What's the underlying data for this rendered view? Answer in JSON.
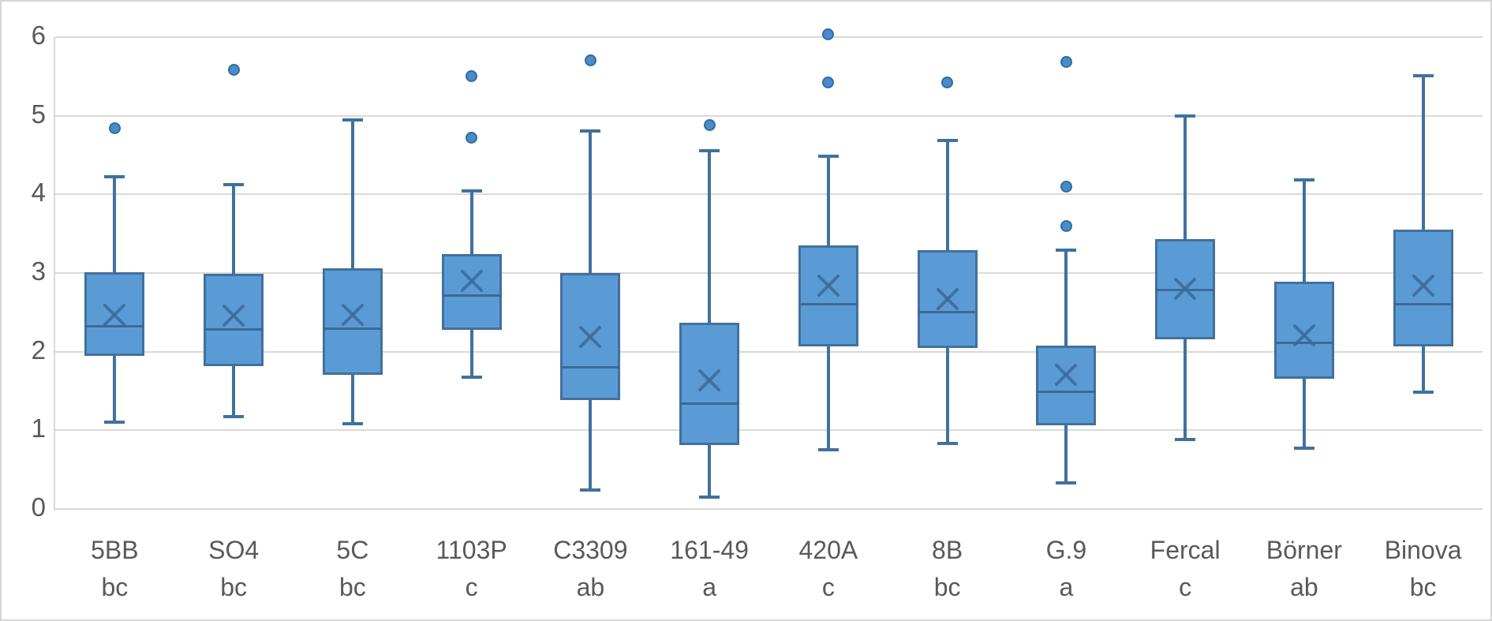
{
  "chart_data": {
    "type": "boxplot",
    "title": "",
    "xlabel": "",
    "ylabel": "",
    "ylim": [
      0,
      6
    ],
    "y_ticks": [
      "0",
      "1",
      "2",
      "3",
      "4",
      "5",
      "6"
    ],
    "grid": true,
    "legend": false,
    "categories": [
      "5BB",
      "SO4",
      "5C",
      "1103P",
      "C3309",
      "161-49",
      "420A",
      "8B",
      "G.9",
      "Fercal",
      "Börner",
      "Binova"
    ],
    "significance_groups": [
      "bc",
      "bc",
      "bc",
      "c",
      "ab",
      "a",
      "c",
      "bc",
      "a",
      "c",
      "ab",
      "bc"
    ],
    "series": [
      {
        "name": "5BB",
        "group": "bc",
        "whisker_low": 1.1,
        "q1": 1.95,
        "median": 2.32,
        "mean": 2.47,
        "q3": 3.01,
        "whisker_high": 4.22,
        "outliers": [
          4.84
        ]
      },
      {
        "name": "SO4",
        "group": "bc",
        "whisker_low": 1.17,
        "q1": 1.82,
        "median": 2.28,
        "mean": 2.46,
        "q3": 2.99,
        "whisker_high": 4.12,
        "outliers": [
          5.58
        ]
      },
      {
        "name": "5C",
        "group": "bc",
        "whisker_low": 1.08,
        "q1": 1.71,
        "median": 2.29,
        "mean": 2.47,
        "q3": 3.06,
        "whisker_high": 4.94,
        "outliers": []
      },
      {
        "name": "1103P",
        "group": "c",
        "whisker_low": 1.68,
        "q1": 2.28,
        "median": 2.71,
        "mean": 2.9,
        "q3": 3.24,
        "whisker_high": 4.04,
        "outliers": [
          5.5,
          4.72
        ]
      },
      {
        "name": "C3309",
        "group": "ab",
        "whisker_low": 0.24,
        "q1": 1.38,
        "median": 1.8,
        "mean": 2.19,
        "q3": 3.0,
        "whisker_high": 4.8,
        "outliers": [
          5.7
        ]
      },
      {
        "name": "161-49",
        "group": "a",
        "whisker_low": 0.15,
        "q1": 0.81,
        "median": 1.34,
        "mean": 1.63,
        "q3": 2.37,
        "whisker_high": 4.55,
        "outliers": [
          4.88
        ]
      },
      {
        "name": "420A",
        "group": "c",
        "whisker_low": 0.75,
        "q1": 2.07,
        "median": 2.6,
        "mean": 2.84,
        "q3": 3.35,
        "whisker_high": 4.48,
        "outliers": [
          6.03,
          5.42
        ]
      },
      {
        "name": "8B",
        "group": "bc",
        "whisker_low": 0.83,
        "q1": 2.05,
        "median": 2.5,
        "mean": 2.67,
        "q3": 3.29,
        "whisker_high": 4.68,
        "outliers": [
          5.42
        ]
      },
      {
        "name": "G.9",
        "group": "a",
        "whisker_low": 0.33,
        "q1": 1.06,
        "median": 1.49,
        "mean": 1.71,
        "q3": 2.08,
        "whisker_high": 3.29,
        "outliers": [
          5.68,
          4.1,
          3.6
        ]
      },
      {
        "name": "Fercal",
        "group": "c",
        "whisker_low": 0.88,
        "q1": 2.16,
        "median": 2.78,
        "mean": 2.8,
        "q3": 3.43,
        "whisker_high": 5.0,
        "outliers": []
      },
      {
        "name": "Börner",
        "group": "ab",
        "whisker_low": 0.77,
        "q1": 1.65,
        "median": 2.11,
        "mean": 2.21,
        "q3": 2.89,
        "whisker_high": 4.18,
        "outliers": []
      },
      {
        "name": "Binova",
        "group": "bc",
        "whisker_low": 1.48,
        "q1": 2.07,
        "median": 2.6,
        "mean": 2.84,
        "q3": 3.55,
        "whisker_high": 5.51,
        "outliers": []
      }
    ],
    "colors": {
      "box_fill": "#5b9bd5",
      "box_border": "#41719c",
      "whisker": "#41719c",
      "median": "#3a6a99",
      "mean_marker": "#3a6a99",
      "outlier_fill": "#4a8bc8",
      "outlier_border": "#2e6da4",
      "gridline": "#d9d9d9",
      "axis_text": "#595959"
    }
  }
}
